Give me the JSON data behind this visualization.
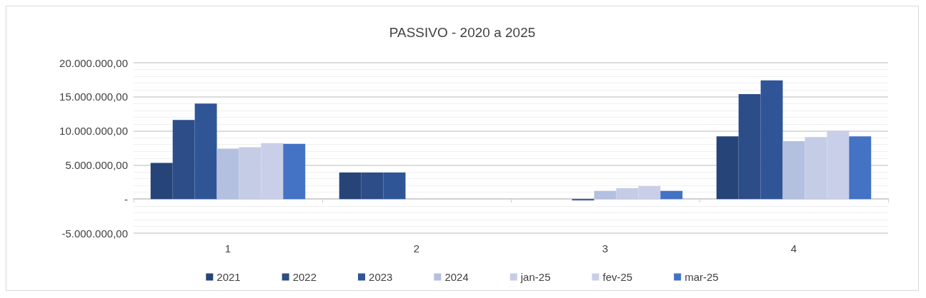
{
  "chart_data": {
    "type": "bar",
    "title": "PASSIVO - 2020 a 2025",
    "categories": [
      "1",
      "2",
      "3",
      "4"
    ],
    "series": [
      {
        "name": "2021",
        "color": "#264478",
        "values": [
          5300000,
          3900000,
          0,
          9200000
        ]
      },
      {
        "name": "2022",
        "color": "#2c4d88",
        "values": [
          11600000,
          3900000,
          0,
          15400000
        ]
      },
      {
        "name": "2023",
        "color": "#2f5597",
        "values": [
          14000000,
          3900000,
          -200000,
          17400000
        ]
      },
      {
        "name": "2024",
        "color": "#b4c0e0",
        "values": [
          7400000,
          0,
          1200000,
          8500000
        ]
      },
      {
        "name": "jan-25",
        "color": "#c5cce6",
        "values": [
          7600000,
          0,
          1600000,
          9100000
        ]
      },
      {
        "name": "fev-25",
        "color": "#c9cfe8",
        "values": [
          8200000,
          0,
          1900000,
          10000000
        ]
      },
      {
        "name": "mar-25",
        "color": "#4472c4",
        "values": [
          8100000,
          0,
          1200000,
          9200000
        ]
      }
    ],
    "ylim": [
      -5000000,
      20000000
    ],
    "yticks": [
      {
        "value": -5000000,
        "label": "-5.000.000,00"
      },
      {
        "value": 0,
        "label": "-"
      },
      {
        "value": 5000000,
        "label": "5.000.000,00"
      },
      {
        "value": 10000000,
        "label": "10.000.000,00"
      },
      {
        "value": 15000000,
        "label": "15.000.000,00"
      },
      {
        "value": 20000000,
        "label": "20.000.000,00"
      }
    ],
    "grid": true,
    "legend": "bottom"
  }
}
